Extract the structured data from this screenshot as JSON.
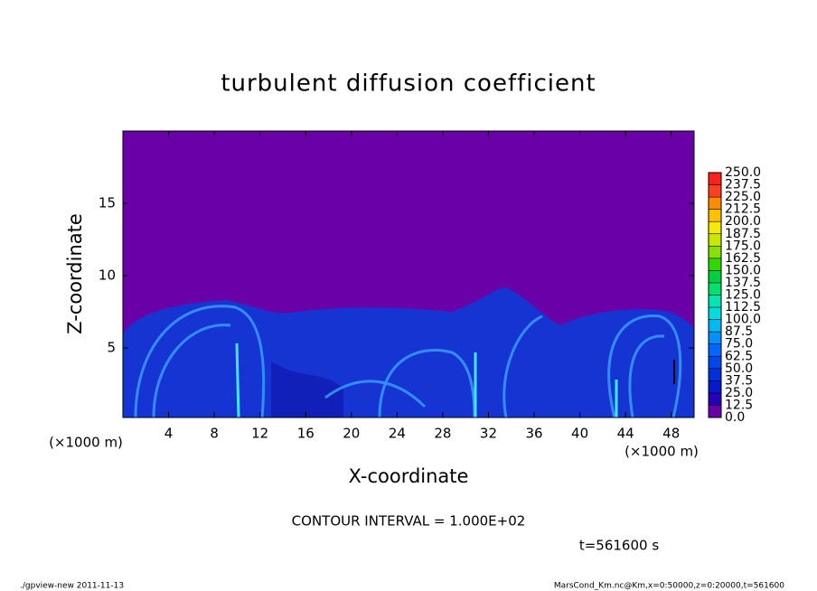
{
  "chart_data": {
    "type": "heatmap",
    "title": "turbulent diffusion coefficient",
    "x_label": "X-coordinate",
    "y_label": "Z-coordinate",
    "x_unit_label": "(×1000 m)",
    "y_unit_label": "(×1000 m)",
    "xlim": [
      0,
      50
    ],
    "xticks": [
      4,
      8,
      12,
      16,
      20,
      24,
      28,
      32,
      36,
      40,
      44,
      48
    ],
    "ylim": [
      0,
      20
    ],
    "yticks": [
      5,
      10,
      15
    ],
    "colorbar": {
      "ticks": [
        {
          "value": 0,
          "label": "0.0"
        },
        {
          "value": 12.5,
          "label": "12.5"
        },
        {
          "value": 25,
          "label": "25.0"
        },
        {
          "value": 37.5,
          "label": "37.5"
        },
        {
          "value": 50,
          "label": "50.0"
        },
        {
          "value": 62.5,
          "label": "62.5"
        },
        {
          "value": 75,
          "label": "75.0"
        },
        {
          "value": 87.5,
          "label": "87.5"
        },
        {
          "value": 100,
          "label": "100.0"
        },
        {
          "value": 112.5,
          "label": "112.5"
        },
        {
          "value": 125,
          "label": "125.0"
        },
        {
          "value": 137.5,
          "label": "137.5"
        },
        {
          "value": 150,
          "label": "150.0"
        },
        {
          "value": 162.5,
          "label": "162.5"
        },
        {
          "value": 175,
          "label": "175.0"
        },
        {
          "value": 187.5,
          "label": "187.5"
        },
        {
          "value": 200,
          "label": "200.0"
        },
        {
          "value": 212.5,
          "label": "212.5"
        },
        {
          "value": 225,
          "label": "225.0"
        },
        {
          "value": 237.5,
          "label": "237.5"
        },
        {
          "value": 250,
          "label": "250.0"
        }
      ],
      "colors": [
        "#6a00a8",
        "#2400b8",
        "#0818cc",
        "#0030dc",
        "#0048ee",
        "#0066ff",
        "#0090ff",
        "#00b8f0",
        "#00dce0",
        "#00e6b0",
        "#00e070",
        "#00d040",
        "#30d800",
        "#88e000",
        "#c8e800",
        "#f4ec00",
        "#ffc000",
        "#ff8c00",
        "#ff4020",
        "#ff2020"
      ]
    },
    "contour_note": "CONTOUR INTERVAL = 1.000E+02",
    "time_note": "t=561600 s",
    "footer_left": "./gpview-new  2011-11-13",
    "footer_right": "MarsCond_Km.nc@Km,x=0:50000,z=0:20000,t=561600"
  }
}
